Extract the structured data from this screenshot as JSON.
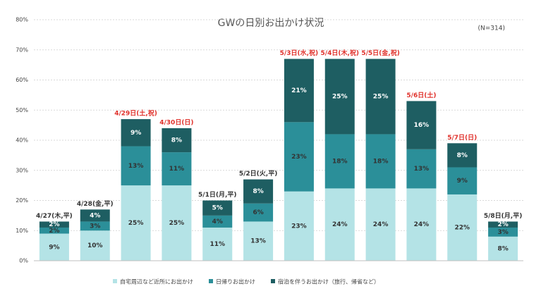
{
  "chart_data": {
    "type": "stacked_bar",
    "title": "GWの日別お出かけ状況",
    "note": "(N=314)",
    "categories": [
      "4/27(木,平)",
      "4/28(金,平)",
      "4/29日(土,祝)",
      "4/30日(日)",
      "5/1日(月,平)",
      "5/2日(火,平)",
      "5/3日(水,祝)",
      "5/4日(木,祝)",
      "5/5日(金,祝)",
      "5/6日(土)",
      "5/7日(日)",
      "5/8日(月,平)"
    ],
    "category_colors": [
      "#333333",
      "#333333",
      "#e0302a",
      "#e0302a",
      "#333333",
      "#333333",
      "#e0302a",
      "#e0302a",
      "#e0302a",
      "#e0302a",
      "#e0302a",
      "#333333"
    ],
    "series": [
      {
        "name": "自宅周辺など近所にお出かけ",
        "color": "#b4e3e6",
        "values": [
          9,
          10,
          25,
          25,
          11,
          13,
          23,
          24,
          24,
          24,
          22,
          8
        ],
        "value_labels": [
          "9%",
          "10%",
          "25%",
          "25%",
          "11%",
          "13%",
          "23%",
          "24%",
          "24%",
          "24%",
          "22%",
          "8%"
        ]
      },
      {
        "name": "日帰りお出かけ",
        "color": "#2b8f99",
        "values": [
          2,
          3,
          13,
          11,
          4,
          6,
          23,
          18,
          18,
          13,
          9,
          3
        ],
        "value_labels": [
          "2%",
          "3%",
          "13%",
          "11%",
          "4%",
          "6%",
          "23%",
          "18%",
          "18%",
          "13%",
          "9%",
          "3%"
        ]
      },
      {
        "name": "宿泊を伴うお出かけ（旅行、帰省など）",
        "color": "#1e5e62",
        "values": [
          2,
          4,
          9,
          8,
          5,
          8,
          21,
          25,
          25,
          16,
          8,
          2
        ],
        "value_labels": [
          "2%",
          "4%",
          "9%",
          "8%",
          "5%",
          "8%",
          "21%",
          "25%",
          "25%",
          "16%",
          "8%",
          "2%"
        ]
      }
    ],
    "ylim": [
      0,
      80
    ],
    "yticks": [
      {
        "value": 0,
        "label": "0%"
      },
      {
        "value": 10,
        "label": "10%"
      },
      {
        "value": 20,
        "label": "20%"
      },
      {
        "value": 30,
        "label": "30%"
      },
      {
        "value": 40,
        "label": "40%"
      },
      {
        "value": 50,
        "label": "50%"
      },
      {
        "value": 60,
        "label": "60%"
      },
      {
        "value": 70,
        "label": "70%"
      },
      {
        "value": 80,
        "label": "80%"
      }
    ],
    "grid": true
  }
}
